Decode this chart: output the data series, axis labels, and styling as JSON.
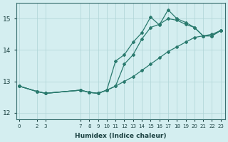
{
  "xlabel": "Humidex (Indice chaleur)",
  "bg_color": "#d4eef0",
  "line_color": "#2a7a6e",
  "grid_color": "#aed4d6",
  "xticks": [
    0,
    2,
    3,
    7,
    8,
    9,
    10,
    11,
    12,
    13,
    14,
    15,
    16,
    17,
    18,
    19,
    20,
    21,
    22,
    23
  ],
  "yticks": [
    12,
    13,
    14,
    15
  ],
  "ylim": [
    11.8,
    15.5
  ],
  "xlim": [
    -0.3,
    23.5
  ],
  "line1_x": [
    0,
    2,
    3,
    7,
    8,
    9,
    10,
    11,
    12,
    13,
    14,
    15,
    16,
    17,
    18,
    19,
    20,
    21,
    22,
    23
  ],
  "line1_y": [
    12.85,
    12.68,
    12.62,
    12.72,
    12.65,
    12.62,
    12.72,
    12.85,
    13.0,
    13.15,
    13.35,
    13.55,
    13.75,
    13.95,
    14.1,
    14.25,
    14.4,
    14.45,
    14.5,
    14.62
  ],
  "line2_x": [
    0,
    2,
    3,
    7,
    8,
    9,
    10,
    11,
    12,
    13,
    14,
    15,
    16,
    17,
    18,
    19,
    20,
    21,
    22,
    23
  ],
  "line2_y": [
    12.85,
    12.68,
    12.62,
    12.72,
    12.65,
    12.62,
    12.72,
    12.85,
    13.55,
    13.85,
    14.35,
    14.72,
    14.82,
    15.0,
    14.95,
    14.82,
    14.72,
    14.45,
    14.45,
    14.62
  ],
  "line3_x": [
    0,
    2,
    3,
    7,
    8,
    9,
    10,
    11,
    12,
    13,
    14,
    15,
    16,
    17,
    18,
    19,
    20,
    21,
    22,
    23
  ],
  "line3_y": [
    12.85,
    12.68,
    12.62,
    12.72,
    12.65,
    12.62,
    12.72,
    13.65,
    13.85,
    14.25,
    14.55,
    15.05,
    14.8,
    15.28,
    15.0,
    14.88,
    14.72,
    14.45,
    14.45,
    14.62
  ]
}
